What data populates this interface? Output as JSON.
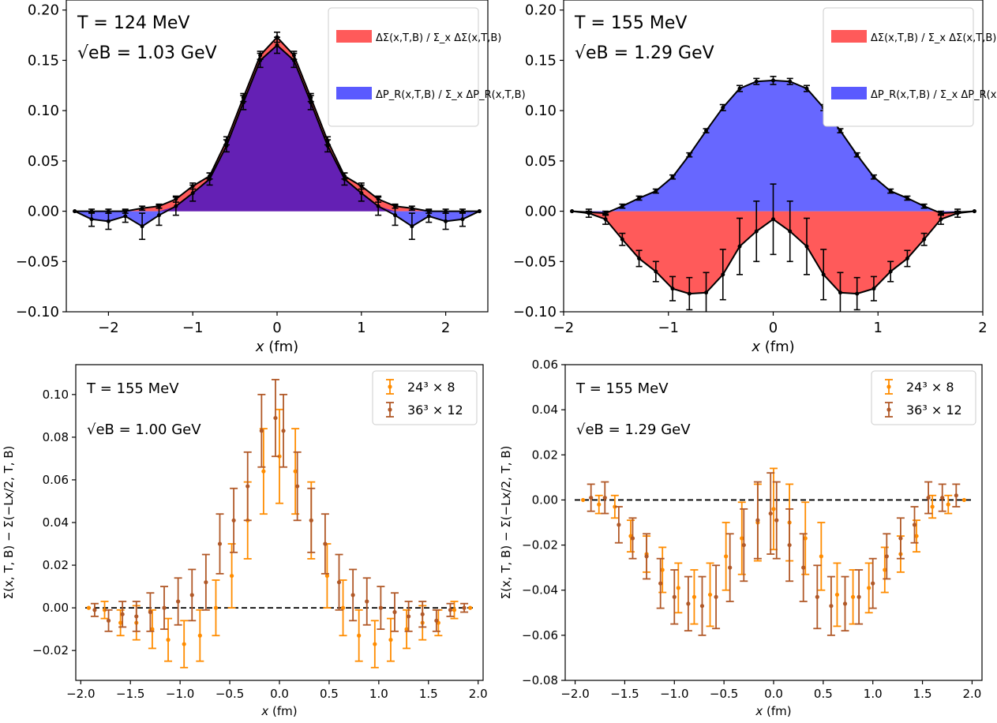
{
  "chart_data": [
    {
      "type": "area",
      "panel": "top-left",
      "xlabel": "x (fm)",
      "ylabel": "",
      "xlim": [
        -2.5,
        2.5
      ],
      "ylim": [
        -0.1,
        0.21
      ],
      "xticks": [
        -2,
        -1,
        0,
        1,
        2
      ],
      "xtick_labels": [
        "−2",
        "−1",
        "0",
        "1",
        "2"
      ],
      "yticks": [
        -0.1,
        -0.05,
        0.0,
        0.05,
        0.1,
        0.15,
        0.2
      ],
      "ytick_labels": [
        "−0.10",
        "−0.05",
        "0.00",
        "0.05",
        "0.10",
        "0.15",
        "0.20"
      ],
      "annotation_T": "T = 124 MeV",
      "annotation_eB": "√eB = 1.03 GeV",
      "legend_position": "top-right",
      "x": [
        -2.4,
        -2.2,
        -2.0,
        -1.8,
        -1.6,
        -1.4,
        -1.2,
        -1.0,
        -0.8,
        -0.6,
        -0.4,
        -0.2,
        0.0,
        0.2,
        0.4,
        0.6,
        0.8,
        1.0,
        1.2,
        1.4,
        1.6,
        1.8,
        2.0,
        2.2,
        2.4
      ],
      "series": [
        {
          "name": "ΔΣ(x,T,B) / Σ_x ΔΣ(x,T,B)",
          "color": "#ff5a5a",
          "values": [
            0.0,
            0.0,
            0.0,
            0.0,
            0.003,
            0.005,
            0.012,
            0.025,
            0.035,
            0.07,
            0.113,
            0.155,
            0.173,
            0.155,
            0.113,
            0.07,
            0.035,
            0.025,
            0.012,
            0.005,
            0.003,
            0.0,
            0.0,
            0.0,
            0.0
          ],
          "errors": [
            0,
            0.002,
            0.002,
            0.002,
            0.002,
            0.002,
            0.003,
            0.003,
            0.003,
            0.004,
            0.004,
            0.004,
            0.005,
            0.004,
            0.004,
            0.004,
            0.003,
            0.003,
            0.003,
            0.002,
            0.002,
            0.002,
            0.002,
            0.002,
            0
          ]
        },
        {
          "name": "ΔP_R(x,T,B) / Σ_x ΔP_R(x,T,B)",
          "color": "#5a5aff",
          "values": [
            0.0,
            -0.008,
            -0.01,
            -0.005,
            -0.015,
            -0.004,
            0.005,
            0.018,
            0.032,
            0.065,
            0.108,
            0.15,
            0.165,
            0.15,
            0.108,
            0.065,
            0.032,
            0.018,
            0.005,
            -0.004,
            -0.015,
            -0.005,
            -0.01,
            -0.008,
            0.0
          ],
          "errors": [
            0,
            0.007,
            0.008,
            0.006,
            0.013,
            0.01,
            0.009,
            0.008,
            0.006,
            0.006,
            0.007,
            0.007,
            0.008,
            0.007,
            0.007,
            0.006,
            0.006,
            0.008,
            0.009,
            0.01,
            0.013,
            0.006,
            0.008,
            0.007,
            0
          ]
        }
      ],
      "overlap_color": "#6420b4"
    },
    {
      "type": "area",
      "panel": "top-right",
      "xlabel": "x (fm)",
      "ylabel": "",
      "xlim": [
        -2.0,
        2.0
      ],
      "ylim": [
        -0.1,
        0.21
      ],
      "xticks": [
        -2,
        -1,
        0,
        1,
        2
      ],
      "xtick_labels": [
        "−2",
        "−1",
        "0",
        "1",
        "2"
      ],
      "yticks": [
        -0.1,
        -0.05,
        0.0,
        0.05,
        0.1,
        0.15,
        0.2
      ],
      "ytick_labels": [
        "−0.10",
        "−0.05",
        "0.00",
        "0.05",
        "0.10",
        "0.15",
        "0.20"
      ],
      "annotation_T": "T = 155 MeV",
      "annotation_eB": "√eB = 1.29 GeV",
      "legend_position": "top-right",
      "x": [
        -1.92,
        -1.76,
        -1.6,
        -1.44,
        -1.28,
        -1.12,
        -0.96,
        -0.8,
        -0.64,
        -0.48,
        -0.32,
        -0.16,
        0.0,
        0.16,
        0.32,
        0.48,
        0.64,
        0.8,
        0.96,
        1.12,
        1.28,
        1.44,
        1.6,
        1.76,
        1.92
      ],
      "series": [
        {
          "name": "ΔΣ(x,T,B) / Σ_x ΔΣ(x,T,B)",
          "color": "#ff5a5a",
          "values": [
            0.0,
            -0.002,
            -0.008,
            -0.028,
            -0.047,
            -0.06,
            -0.077,
            -0.082,
            -0.081,
            -0.063,
            -0.035,
            -0.02,
            -0.008,
            -0.02,
            -0.035,
            -0.063,
            -0.081,
            -0.082,
            -0.077,
            -0.06,
            -0.047,
            -0.028,
            -0.008,
            -0.002,
            0.0
          ],
          "errors": [
            0,
            0.004,
            0.005,
            0.006,
            0.008,
            0.01,
            0.012,
            0.016,
            0.02,
            0.025,
            0.028,
            0.03,
            0.035,
            0.03,
            0.028,
            0.025,
            0.02,
            0.016,
            0.012,
            0.01,
            0.008,
            0.006,
            0.005,
            0.004,
            0
          ]
        },
        {
          "name": "ΔP_R(x,T,B) / Σ_x ΔP_R(x,T,B)",
          "color": "#5a5aff",
          "values": [
            0.0,
            -0.001,
            -0.002,
            0.005,
            0.013,
            0.02,
            0.034,
            0.056,
            0.08,
            0.103,
            0.122,
            0.129,
            0.13,
            0.129,
            0.122,
            0.103,
            0.08,
            0.056,
            0.034,
            0.02,
            0.013,
            0.005,
            -0.002,
            -0.001,
            0.0
          ],
          "errors": [
            0,
            0.001,
            0.002,
            0.002,
            0.002,
            0.002,
            0.002,
            0.002,
            0.002,
            0.003,
            0.003,
            0.003,
            0.004,
            0.003,
            0.003,
            0.003,
            0.002,
            0.002,
            0.002,
            0.002,
            0.002,
            0.002,
            0.002,
            0.001,
            0
          ]
        }
      ]
    },
    {
      "type": "scatter",
      "panel": "bottom-left",
      "xlabel": "x (fm)",
      "ylabel": "Σ(x, T, B) − Σ(−Lx/2, T, B)",
      "xlim": [
        -2.05,
        2.05
      ],
      "ylim": [
        -0.034,
        0.114
      ],
      "xticks": [
        -2.0,
        -1.5,
        -1.0,
        -0.5,
        0.0,
        0.5,
        1.0,
        1.5,
        2.0
      ],
      "xtick_labels": [
        "−2.0",
        "−1.5",
        "−1.0",
        "−0.5",
        "0.0",
        "0.5",
        "1.0",
        "1.5",
        "2.0"
      ],
      "yticks": [
        -0.02,
        0.0,
        0.02,
        0.04,
        0.06,
        0.08,
        0.1
      ],
      "ytick_labels": [
        "−0.02",
        "0.00",
        "0.02",
        "0.04",
        "0.06",
        "0.08",
        "0.10"
      ],
      "annotation_T": "T = 155 MeV",
      "annotation_eB": "√eB = 1.00 GeV",
      "legend_position": "top-right",
      "reference_line": 0.0,
      "series": [
        {
          "name": "24³ × 8",
          "color": "#ff8c00",
          "x": [
            -1.92,
            -1.76,
            -1.6,
            -1.44,
            -1.28,
            -1.12,
            -0.96,
            -0.8,
            -0.64,
            -0.48,
            -0.32,
            -0.16,
            0.0,
            0.16,
            0.32,
            0.48,
            0.64,
            0.8,
            0.96,
            1.12,
            1.28,
            1.44,
            1.6,
            1.76,
            1.92
          ],
          "values": [
            0.0,
            -0.001,
            -0.007,
            -0.007,
            -0.01,
            -0.015,
            -0.017,
            -0.013,
            0.0,
            0.015,
            0.041,
            0.064,
            0.071,
            0.064,
            0.041,
            0.015,
            0.0,
            -0.013,
            -0.017,
            -0.015,
            -0.01,
            -0.007,
            -0.007,
            -0.001,
            0.0
          ],
          "errors": [
            0,
            0.004,
            0.006,
            0.008,
            0.009,
            0.01,
            0.011,
            0.012,
            0.013,
            0.015,
            0.018,
            0.02,
            0.022,
            0.02,
            0.018,
            0.015,
            0.013,
            0.012,
            0.011,
            0.01,
            0.009,
            0.008,
            0.006,
            0.004,
            0
          ]
        },
        {
          "name": "36³ × 12",
          "color": "#b15928",
          "x": [
            -1.86,
            -1.72,
            -1.58,
            -1.44,
            -1.3,
            -1.16,
            -1.02,
            -0.88,
            -0.74,
            -0.6,
            -0.46,
            -0.32,
            -0.18,
            -0.04,
            0.04,
            0.18,
            0.32,
            0.46,
            0.6,
            0.74,
            0.88,
            1.02,
            1.16,
            1.3,
            1.44,
            1.58,
            1.72,
            1.86
          ],
          "values": [
            -0.001,
            -0.006,
            -0.003,
            -0.004,
            -0.002,
            0.0,
            0.003,
            0.006,
            0.012,
            0.03,
            0.041,
            0.057,
            0.083,
            0.089,
            0.083,
            0.057,
            0.041,
            0.03,
            0.012,
            0.006,
            0.003,
            0.0,
            -0.002,
            -0.004,
            -0.003,
            -0.006,
            -0.001,
            0.0
          ],
          "errors": [
            0.003,
            0.005,
            0.006,
            0.007,
            0.009,
            0.01,
            0.011,
            0.012,
            0.013,
            0.014,
            0.015,
            0.016,
            0.017,
            0.018,
            0.017,
            0.016,
            0.015,
            0.014,
            0.013,
            0.012,
            0.011,
            0.01,
            0.009,
            0.007,
            0.006,
            0.005,
            0.003,
            0.002
          ]
        }
      ]
    },
    {
      "type": "scatter",
      "panel": "bottom-right",
      "xlabel": "x (fm)",
      "ylabel": "Σ(x, T, B) − Σ(−Lx/2, T, B)",
      "xlim": [
        -2.1,
        2.1
      ],
      "ylim": [
        -0.08,
        0.06
      ],
      "xticks": [
        -2.0,
        -1.5,
        -1.0,
        -0.5,
        0.0,
        0.5,
        1.0,
        1.5,
        2.0
      ],
      "xtick_labels": [
        "−2.0",
        "−1.5",
        "−1.0",
        "−0.5",
        "0.0",
        "0.5",
        "1.0",
        "1.5",
        "2.0"
      ],
      "yticks": [
        -0.08,
        -0.06,
        -0.04,
        -0.02,
        0.0,
        0.02,
        0.04,
        0.06
      ],
      "ytick_labels": [
        "−0.08",
        "−0.06",
        "−0.04",
        "−0.02",
        "0.00",
        "0.02",
        "0.04",
        "0.06"
      ],
      "annotation_T": "T = 155 MeV",
      "annotation_eB": "√eB = 1.29 GeV",
      "legend_position": "top-right",
      "reference_line": 0.0,
      "series": [
        {
          "name": "24³ × 8",
          "color": "#ff8c00",
          "x": [
            -1.92,
            -1.76,
            -1.6,
            -1.44,
            -1.28,
            -1.12,
            -0.96,
            -0.8,
            -0.64,
            -0.48,
            -0.32,
            -0.16,
            0.0,
            0.16,
            0.32,
            0.48,
            0.64,
            0.8,
            0.96,
            1.12,
            1.28,
            1.44,
            1.6,
            1.76,
            1.92
          ],
          "values": [
            0.0,
            -0.002,
            -0.003,
            -0.016,
            -0.024,
            -0.031,
            -0.039,
            -0.043,
            -0.042,
            -0.025,
            -0.017,
            -0.01,
            -0.004,
            -0.01,
            -0.017,
            -0.025,
            -0.042,
            -0.043,
            -0.039,
            -0.031,
            -0.024,
            -0.016,
            -0.003,
            -0.002,
            0.0
          ],
          "errors": [
            0,
            0.004,
            0.005,
            0.007,
            0.008,
            0.01,
            0.011,
            0.012,
            0.014,
            0.015,
            0.016,
            0.017,
            0.018,
            0.017,
            0.016,
            0.015,
            0.014,
            0.012,
            0.011,
            0.01,
            0.008,
            0.007,
            0.005,
            0.004,
            0
          ]
        },
        {
          "name": "36³ × 12",
          "color": "#b15928",
          "x": [
            -1.84,
            -1.7,
            -1.56,
            -1.42,
            -1.28,
            -1.14,
            -1.0,
            -0.86,
            -0.72,
            -0.58,
            -0.44,
            -0.3,
            -0.16,
            -0.03,
            0.03,
            0.16,
            0.3,
            0.44,
            0.58,
            0.72,
            0.86,
            1.0,
            1.14,
            1.28,
            1.42,
            1.56,
            1.7,
            1.84
          ],
          "values": [
            0.001,
            0.001,
            -0.011,
            -0.017,
            -0.025,
            -0.037,
            -0.043,
            -0.046,
            -0.047,
            -0.043,
            -0.03,
            -0.02,
            -0.009,
            -0.006,
            -0.009,
            -0.02,
            -0.03,
            -0.043,
            -0.047,
            -0.046,
            -0.043,
            -0.037,
            -0.025,
            -0.017,
            -0.011,
            0.001,
            0.001,
            0.002
          ],
          "errors": [
            0.006,
            0.007,
            0.008,
            0.009,
            0.01,
            0.011,
            0.012,
            0.012,
            0.013,
            0.014,
            0.015,
            0.016,
            0.017,
            0.018,
            0.017,
            0.016,
            0.015,
            0.014,
            0.013,
            0.012,
            0.012,
            0.011,
            0.01,
            0.009,
            0.008,
            0.007,
            0.006,
            0.005
          ]
        }
      ]
    }
  ]
}
